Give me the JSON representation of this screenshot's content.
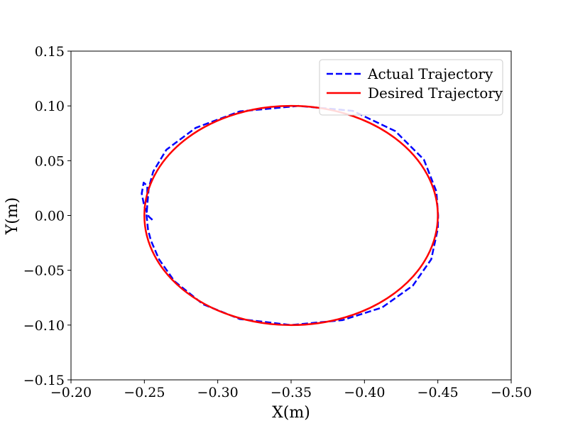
{
  "chart_data": {
    "type": "line",
    "title": "",
    "xlabel": "X(m)",
    "ylabel": "Y(m)",
    "xlim": [
      -0.2,
      -0.5
    ],
    "ylim": [
      -0.15,
      0.15
    ],
    "x_ticks": [
      -0.2,
      -0.25,
      -0.3,
      -0.35,
      -0.4,
      -0.45,
      -0.5
    ],
    "x_tick_labels": [
      "−0.20",
      "−0.25",
      "−0.30",
      "−0.35",
      "−0.40",
      "−0.45",
      "−0.50"
    ],
    "y_ticks": [
      0.15,
      0.1,
      0.05,
      0.0,
      -0.05,
      -0.1,
      -0.15
    ],
    "y_tick_labels": [
      "0.15",
      "0.10",
      "0.05",
      "0.00",
      "−0.05",
      "−0.10",
      "−0.15"
    ],
    "grid": false,
    "legend_position": "top-right",
    "series": [
      {
        "name": "Actual Trajectory",
        "color": "#0000ff",
        "line_style": "dashed",
        "points": [
          [
            -0.2555,
            -0.004
          ],
          [
            -0.253,
            -0.001
          ],
          [
            -0.25,
            0.008
          ],
          [
            -0.2482,
            0.02
          ],
          [
            -0.2495,
            0.03
          ],
          [
            -0.252,
            0.027
          ],
          [
            -0.252,
            0.01
          ],
          [
            -0.2515,
            0.0
          ],
          [
            -0.2525,
            -0.013
          ],
          [
            -0.2545,
            -0.023
          ],
          [
            -0.26,
            -0.04
          ],
          [
            -0.2705,
            -0.06
          ],
          [
            -0.29,
            -0.081
          ],
          [
            -0.315,
            -0.0945
          ],
          [
            -0.35,
            -0.1
          ],
          [
            -0.385,
            -0.0955
          ],
          [
            -0.412,
            -0.084
          ],
          [
            -0.433,
            -0.064
          ],
          [
            -0.4455,
            -0.04
          ],
          [
            -0.45,
            -0.012
          ],
          [
            -0.4502,
            0.0
          ],
          [
            -0.449,
            0.022
          ],
          [
            -0.4405,
            0.051
          ],
          [
            -0.421,
            0.077
          ],
          [
            -0.392,
            0.0955
          ],
          [
            -0.355,
            0.1
          ],
          [
            -0.315,
            0.095
          ],
          [
            -0.285,
            0.08
          ],
          [
            -0.265,
            0.06
          ],
          [
            -0.256,
            0.04
          ],
          [
            -0.253,
            0.025
          ],
          [
            -0.252,
            0.01
          ]
        ]
      },
      {
        "name": "Desired Trajectory",
        "color": "#ff0000",
        "line_style": "solid",
        "center": [
          -0.35,
          0.0
        ],
        "radius_x": 0.1,
        "radius_y": 0.1
      }
    ]
  }
}
